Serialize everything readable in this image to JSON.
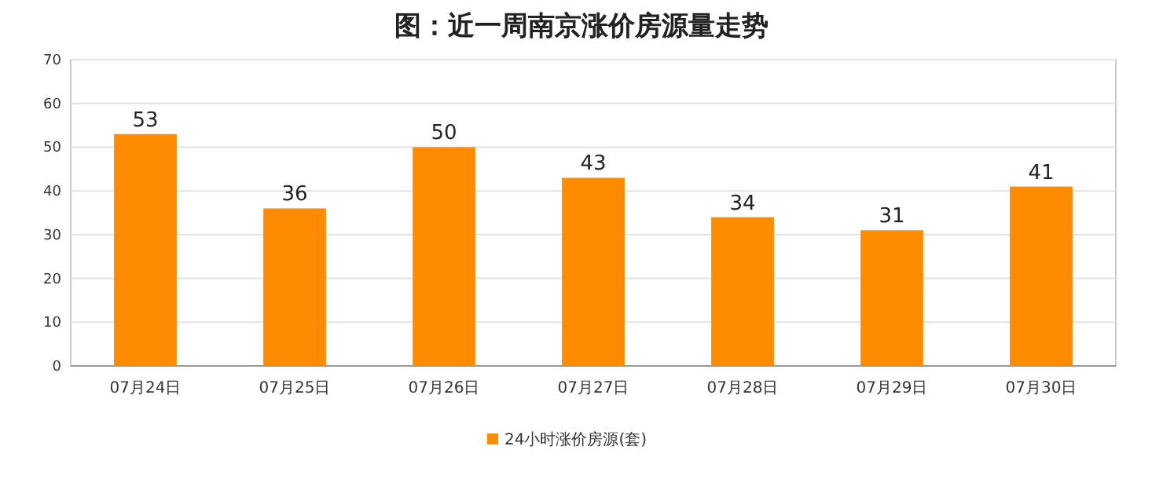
{
  "chart_data": {
    "type": "bar",
    "title": "图：近一周南京涨价房源量走势",
    "categories": [
      "07月24日",
      "07月25日",
      "07月26日",
      "07月27日",
      "07月28日",
      "07月29日",
      "07月30日"
    ],
    "series": [
      {
        "name": "24小时涨价房源(套)",
        "color": "#ff8c00",
        "values": [
          53,
          36,
          50,
          43,
          34,
          31,
          41
        ]
      }
    ],
    "ylim": [
      0,
      70
    ],
    "yticks": [
      0,
      10,
      20,
      30,
      40,
      50,
      60,
      70
    ],
    "grid": "y",
    "legend": "bottom",
    "data_labels": true
  }
}
